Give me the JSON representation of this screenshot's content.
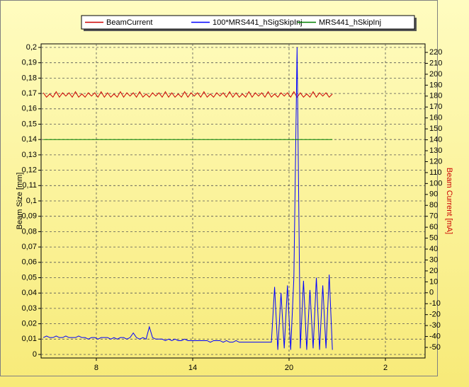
{
  "chart_data": {
    "type": "line",
    "x_label": "",
    "ylabel": "Beam Size [mm]",
    "y2label": "Beam Current [mA]",
    "x": [
      4.7,
      4.9,
      5.1,
      5.3,
      5.5,
      5.7,
      5.9,
      6.1,
      6.3,
      6.5,
      6.7,
      6.9,
      7.1,
      7.3,
      7.5,
      7.7,
      7.9,
      8.1,
      8.3,
      8.5,
      8.7,
      8.9,
      9.1,
      9.3,
      9.5,
      9.7,
      9.9,
      10.1,
      10.3,
      10.5,
      10.7,
      10.9,
      11.1,
      11.3,
      11.5,
      11.7,
      11.9,
      12.1,
      12.3,
      12.5,
      12.7,
      12.9,
      13.1,
      13.3,
      13.5,
      13.7,
      13.9,
      14.1,
      14.3,
      14.5,
      14.7,
      14.9,
      15.1,
      15.3,
      15.5,
      15.7,
      15.9,
      16.1,
      16.3,
      16.5,
      16.7,
      16.9,
      17.1,
      17.3,
      17.5,
      17.7,
      17.9,
      18.1,
      18.3,
      18.5,
      18.7,
      18.9,
      19.1,
      19.3,
      19.5,
      19.7,
      19.9,
      20.1,
      20.3,
      20.5,
      20.7,
      20.9,
      21.1,
      21.3,
      21.5,
      21.7,
      21.9,
      22.1,
      22.3,
      22.5,
      22.7
    ],
    "series": [
      {
        "name": "BeamCurrent",
        "color": "#cc0000",
        "axis": "y2",
        "values": [
          183,
          179,
          182,
          179,
          184,
          179,
          183,
          180,
          183,
          179,
          184,
          179,
          182,
          179,
          183,
          180,
          183,
          179,
          184,
          179,
          183,
          179,
          182,
          179,
          184,
          179,
          183,
          180,
          183,
          179,
          184,
          179,
          182,
          179,
          183,
          180,
          183,
          179,
          184,
          179,
          183,
          179,
          182,
          179,
          184,
          179,
          183,
          180,
          183,
          179,
          184,
          179,
          182,
          179,
          183,
          180,
          183,
          179,
          184,
          179,
          183,
          179,
          182,
          179,
          184,
          179,
          183,
          180,
          183,
          179,
          184,
          179,
          182,
          179,
          183,
          180,
          183,
          179,
          184,
          179,
          183,
          179,
          182,
          179,
          184,
          179,
          183,
          180,
          183,
          179,
          182
        ]
      },
      {
        "name": "100*MRS441_hSigSkipInj",
        "color": "#0000ff",
        "values": [
          0.011,
          0.012,
          0.011,
          0.011,
          0.012,
          0.011,
          0.011,
          0.012,
          0.011,
          0.011,
          0.011,
          0.012,
          0.011,
          0.011,
          0.01,
          0.011,
          0.011,
          0.01,
          0.011,
          0.011,
          0.011,
          0.01,
          0.011,
          0.01,
          0.011,
          0.011,
          0.01,
          0.011,
          0.014,
          0.011,
          0.01,
          0.011,
          0.01,
          0.018,
          0.011,
          0.01,
          0.01,
          0.01,
          0.009,
          0.01,
          0.009,
          0.01,
          0.009,
          0.009,
          0.01,
          0.009,
          0.009,
          0.009,
          0.009,
          0.009,
          0.009,
          0.009,
          0.008,
          0.009,
          0.009,
          0.009,
          0.008,
          0.009,
          0.008,
          0.008,
          0.009,
          0.008,
          0.008,
          0.008,
          0.008,
          0.008,
          0.008,
          0.008,
          0.008,
          0.008,
          0.008,
          0.008,
          0.044,
          0.003,
          0.04,
          0.004,
          0.045,
          0.003,
          0.05,
          0.2,
          0.004,
          0.048,
          0.003,
          0.042,
          0.004,
          0.05,
          0.003,
          0.045,
          0.004,
          0.052,
          0.003
        ]
      },
      {
        "name": "MRS441_hSkipInj",
        "color": "#008000",
        "values": [
          0.14,
          0.14,
          0.14,
          0.14,
          0.14,
          0.14,
          0.14,
          0.14,
          0.14,
          0.14,
          0.14,
          0.14,
          0.14,
          0.14,
          0.14,
          0.14,
          0.14,
          0.14,
          0.14,
          0.14,
          0.14,
          0.14,
          0.14,
          0.14,
          0.14,
          0.14,
          0.14,
          0.14,
          0.14,
          0.14,
          0.14,
          0.14,
          0.14,
          0.14,
          0.14,
          0.14,
          0.14,
          0.14,
          0.14,
          0.14,
          0.14,
          0.14,
          0.14,
          0.14,
          0.14,
          0.14,
          0.14,
          0.14,
          0.14,
          0.14,
          0.14,
          0.14,
          0.14,
          0.14,
          0.14,
          0.14,
          0.14,
          0.14,
          0.14,
          0.14,
          0.14,
          0.14,
          0.14,
          0.14,
          0.14,
          0.14,
          0.14,
          0.14,
          0.14,
          0.14,
          0.14,
          0.14,
          0.14,
          0.14,
          0.14,
          0.14,
          0.14,
          0.14,
          0.14,
          0.14,
          0.14,
          0.14,
          0.14,
          0.14,
          0.14,
          0.14,
          0.14,
          0.14,
          0.14,
          0.14,
          0.14
        ]
      }
    ],
    "xlim": [
      4.56,
      28.47
    ],
    "xticks": [
      8,
      14,
      20,
      {
        "value": 26,
        "label": "2"
      }
    ],
    "ylim": [
      -0.0023,
      0.2023
    ],
    "yticks": [
      0,
      {
        "value": 0.01,
        "label": "0,01"
      },
      {
        "value": 0.02,
        "label": "0,02"
      },
      {
        "value": 0.03,
        "label": "0,03"
      },
      {
        "value": 0.04,
        "label": "0,04"
      },
      {
        "value": 0.05,
        "label": "0,05"
      },
      {
        "value": 0.06,
        "label": "0,06"
      },
      {
        "value": 0.07,
        "label": "0,07"
      },
      {
        "value": 0.08,
        "label": "0,08"
      },
      {
        "value": 0.09,
        "label": "0,09"
      },
      {
        "value": 0.1,
        "label": "0,1"
      },
      {
        "value": 0.11,
        "label": "0,11"
      },
      {
        "value": 0.12,
        "label": "0,12"
      },
      {
        "value": 0.13,
        "label": "0,13"
      },
      {
        "value": 0.14,
        "label": "0,14"
      },
      {
        "value": 0.15,
        "label": "0,15"
      },
      {
        "value": 0.16,
        "label": "0,16"
      },
      {
        "value": 0.17,
        "label": "0,17"
      },
      {
        "value": 0.18,
        "label": "0,18"
      },
      {
        "value": 0.19,
        "label": "0,19"
      },
      {
        "value": 0.2,
        "label": "0,2"
      }
    ],
    "y2lim": [
      -59.7,
      227.8
    ],
    "y2ticks": [
      -50,
      -40,
      -30,
      -20,
      -10,
      0,
      10,
      20,
      30,
      40,
      50,
      60,
      70,
      80,
      90,
      100,
      110,
      120,
      130,
      140,
      150,
      160,
      170,
      180,
      190,
      200,
      210,
      220
    ],
    "grid": true
  }
}
